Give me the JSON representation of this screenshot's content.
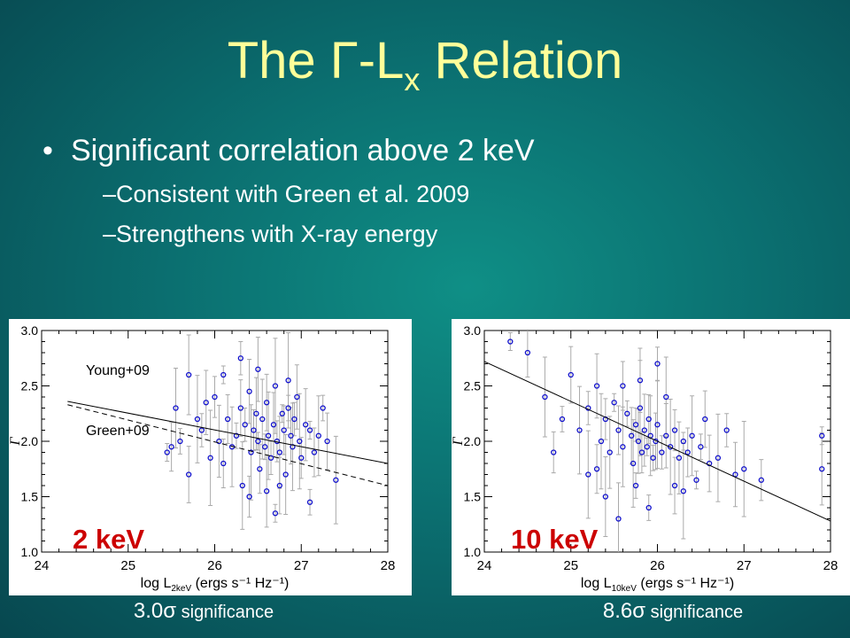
{
  "slide": {
    "title_prefix": "The ",
    "title_symbol": "Γ",
    "title_L": "-L",
    "title_sub": "x",
    "title_suffix": " Relation",
    "bullet_main": "Significant correlation above 2 keV",
    "sub_bullets": [
      "–Consistent with Green et al. 2009",
      "–Strengthens with X-ray energy"
    ]
  },
  "colors": {
    "title": "#ffff99",
    "band_label": "#cc0000",
    "points": "#1010cc",
    "error_bars": "#aaaaaa"
  },
  "chart_data": [
    {
      "type": "scatter",
      "band_label": "2 keV",
      "xlabel_prefix": "log L",
      "xlabel_sub": "2keV",
      "xlabel_suffix": " (ergs s⁻¹ Hz⁻¹)",
      "ylabel": "Γ",
      "xlim": [
        24,
        28
      ],
      "ylim": [
        1.0,
        3.0
      ],
      "xticks": [
        "24",
        "25",
        "26",
        "27",
        "28"
      ],
      "yticks": [
        "1.0",
        "1.5",
        "2.0",
        "2.5",
        "3.0"
      ],
      "caption_value": "3.0",
      "caption_sigma": "σ",
      "caption_text": " significance",
      "lines": [
        {
          "name": "Young+09",
          "style": "solid",
          "x": [
            24.3,
            28
          ],
          "y": [
            2.36,
            1.8
          ]
        },
        {
          "name": "Green+09",
          "style": "dashed",
          "x": [
            24.3,
            28
          ],
          "y": [
            2.33,
            1.6
          ]
        }
      ],
      "points": [
        [
          25.45,
          1.9
        ],
        [
          25.5,
          1.95
        ],
        [
          25.55,
          2.3
        ],
        [
          25.6,
          2.0
        ],
        [
          25.7,
          1.7
        ],
        [
          25.8,
          2.2
        ],
        [
          25.85,
          2.1
        ],
        [
          25.9,
          2.35
        ],
        [
          25.95,
          1.85
        ],
        [
          26.0,
          2.4
        ],
        [
          26.05,
          2.0
        ],
        [
          26.1,
          2.6
        ],
        [
          26.15,
          2.2
        ],
        [
          26.2,
          1.95
        ],
        [
          26.25,
          2.05
        ],
        [
          26.3,
          2.3
        ],
        [
          26.32,
          1.6
        ],
        [
          26.35,
          2.15
        ],
        [
          26.4,
          2.45
        ],
        [
          26.42,
          1.9
        ],
        [
          26.45,
          2.1
        ],
        [
          26.48,
          2.25
        ],
        [
          26.5,
          2.0
        ],
        [
          26.52,
          1.75
        ],
        [
          26.55,
          2.2
        ],
        [
          26.58,
          1.95
        ],
        [
          26.6,
          2.35
        ],
        [
          26.62,
          2.05
        ],
        [
          26.65,
          1.85
        ],
        [
          26.68,
          2.15
        ],
        [
          26.7,
          2.5
        ],
        [
          26.72,
          2.0
        ],
        [
          26.75,
          1.9
        ],
        [
          26.78,
          2.25
        ],
        [
          26.8,
          2.1
        ],
        [
          26.82,
          1.7
        ],
        [
          26.85,
          2.3
        ],
        [
          26.88,
          2.05
        ],
        [
          26.9,
          1.95
        ],
        [
          26.92,
          2.2
        ],
        [
          26.95,
          2.4
        ],
        [
          26.98,
          2.0
        ],
        [
          27.0,
          1.85
        ],
        [
          27.05,
          2.15
        ],
        [
          27.1,
          2.1
        ],
        [
          27.15,
          1.9
        ],
        [
          27.2,
          2.05
        ],
        [
          27.25,
          2.3
        ],
        [
          27.3,
          2.0
        ],
        [
          27.4,
          1.65
        ],
        [
          26.3,
          2.75
        ],
        [
          26.5,
          2.65
        ],
        [
          26.85,
          2.55
        ],
        [
          26.4,
          1.5
        ],
        [
          26.6,
          1.55
        ],
        [
          26.7,
          1.35
        ],
        [
          26.1,
          1.8
        ],
        [
          25.7,
          2.6
        ],
        [
          27.1,
          1.45
        ],
        [
          26.75,
          1.6
        ]
      ]
    },
    {
      "type": "scatter",
      "band_label": "10 keV",
      "xlabel_prefix": "log L",
      "xlabel_sub": "10keV",
      "xlabel_suffix": " (ergs s⁻¹ Hz⁻¹)",
      "ylabel": "Γ",
      "xlim": [
        24,
        28
      ],
      "ylim": [
        1.0,
        3.0
      ],
      "xticks": [
        "24",
        "25",
        "26",
        "27",
        "28"
      ],
      "yticks": [
        "1.0",
        "1.5",
        "2.0",
        "2.5",
        "3.0"
      ],
      "caption_value": "8.6",
      "caption_sigma": "σ",
      "caption_text": " significance",
      "lines": [
        {
          "name": "",
          "style": "solid",
          "x": [
            24.0,
            28
          ],
          "y": [
            2.72,
            1.28
          ]
        }
      ],
      "points": [
        [
          24.3,
          2.9
        ],
        [
          24.5,
          2.8
        ],
        [
          24.7,
          2.4
        ],
        [
          24.9,
          2.2
        ],
        [
          25.0,
          2.6
        ],
        [
          25.1,
          2.1
        ],
        [
          25.2,
          2.3
        ],
        [
          25.3,
          2.5
        ],
        [
          25.35,
          2.0
        ],
        [
          25.4,
          2.2
        ],
        [
          25.45,
          1.9
        ],
        [
          25.5,
          2.35
        ],
        [
          25.55,
          2.1
        ],
        [
          25.6,
          1.95
        ],
        [
          25.65,
          2.25
        ],
        [
          25.7,
          2.05
        ],
        [
          25.72,
          1.8
        ],
        [
          25.75,
          2.15
        ],
        [
          25.78,
          2.0
        ],
        [
          25.8,
          2.3
        ],
        [
          25.82,
          1.9
        ],
        [
          25.85,
          2.1
        ],
        [
          25.88,
          1.95
        ],
        [
          25.9,
          2.2
        ],
        [
          25.92,
          2.05
        ],
        [
          25.95,
          1.85
        ],
        [
          25.98,
          2.0
        ],
        [
          26.0,
          2.15
        ],
        [
          26.05,
          1.9
        ],
        [
          26.1,
          2.05
        ],
        [
          26.15,
          1.95
        ],
        [
          26.2,
          2.1
        ],
        [
          26.25,
          1.85
        ],
        [
          26.3,
          2.0
        ],
        [
          26.35,
          1.9
        ],
        [
          26.4,
          2.05
        ],
        [
          26.5,
          1.95
        ],
        [
          26.6,
          1.8
        ],
        [
          26.7,
          1.85
        ],
        [
          26.8,
          2.1
        ],
        [
          26.9,
          1.7
        ],
        [
          27.0,
          1.75
        ],
        [
          27.2,
          1.65
        ],
        [
          27.9,
          1.75
        ],
        [
          27.9,
          2.05
        ],
        [
          25.6,
          2.5
        ],
        [
          25.4,
          1.5
        ],
        [
          25.9,
          1.4
        ],
        [
          26.2,
          1.6
        ],
        [
          25.2,
          1.7
        ],
        [
          26.0,
          2.7
        ],
        [
          25.8,
          2.55
        ],
        [
          26.3,
          1.55
        ],
        [
          24.8,
          1.9
        ],
        [
          25.55,
          1.3
        ],
        [
          26.45,
          1.65
        ],
        [
          25.3,
          1.75
        ],
        [
          26.1,
          2.4
        ],
        [
          25.75,
          1.6
        ],
        [
          26.55,
          2.2
        ]
      ]
    }
  ]
}
